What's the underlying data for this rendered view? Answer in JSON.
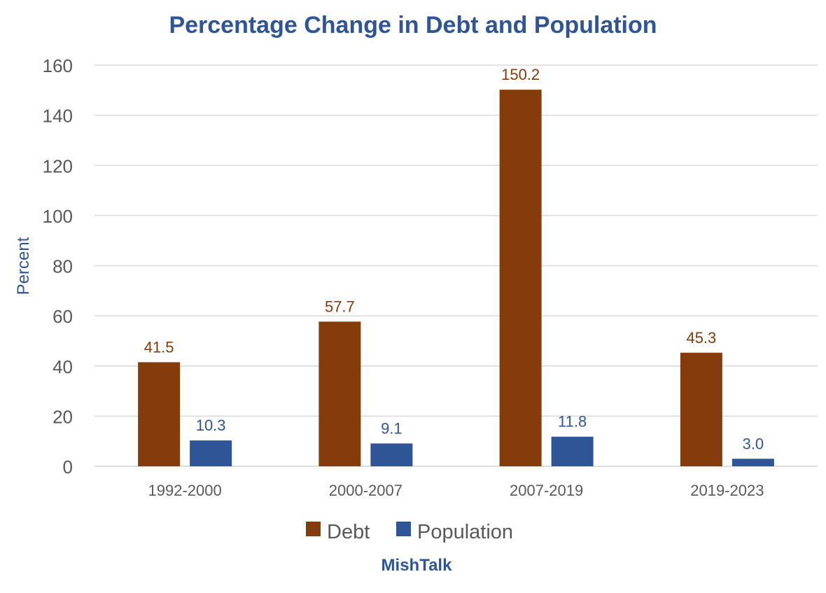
{
  "chart_data": {
    "type": "bar",
    "title": "Percentage Change in Debt and Population",
    "ylabel": "Percent",
    "xlabel": "",
    "categories": [
      "1992-2000",
      "2000-2007",
      "2007-2019",
      "2019-2023"
    ],
    "series": [
      {
        "name": "Debt",
        "values": [
          41.5,
          57.7,
          150.2,
          45.3
        ],
        "labels": [
          "41.5",
          "57.7",
          "150.2",
          "45.3"
        ],
        "color": "#843C0C"
      },
      {
        "name": "Population",
        "values": [
          10.3,
          9.1,
          11.8,
          3.0
        ],
        "labels": [
          "10.3",
          "9.1",
          "11.8",
          "3.0"
        ],
        "color": "#2F5597"
      }
    ],
    "ylim": [
      0,
      160
    ],
    "yticks": [
      0,
      20,
      40,
      60,
      80,
      100,
      120,
      140,
      160
    ],
    "grid": true,
    "legend_position": "bottom",
    "source": "MishTalk"
  },
  "colors": {
    "title": "#2F5597",
    "axis_text": "#595959",
    "grid": "#D9D9D9"
  }
}
